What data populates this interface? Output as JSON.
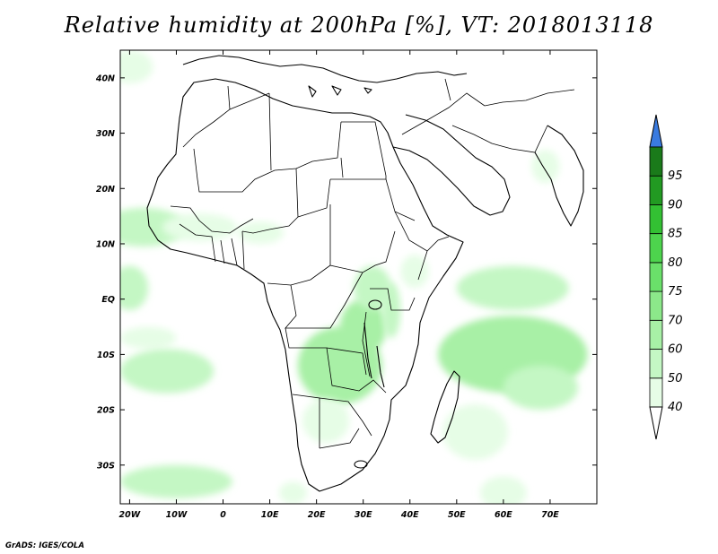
{
  "title": "Relative humidity at 200hPa [%], VT: 2018013118",
  "credit": "GrADS: IGES/COLA",
  "map": {
    "lon_range": [
      -22,
      80
    ],
    "lat_range": [
      -37,
      45
    ],
    "lon_ticks": [
      {
        "lon": -20,
        "label": "20W"
      },
      {
        "lon": -10,
        "label": "10W"
      },
      {
        "lon": 0,
        "label": "0"
      },
      {
        "lon": 10,
        "label": "10E"
      },
      {
        "lon": 20,
        "label": "20E"
      },
      {
        "lon": 30,
        "label": "30E"
      },
      {
        "lon": 40,
        "label": "40E"
      },
      {
        "lon": 50,
        "label": "50E"
      },
      {
        "lon": 60,
        "label": "60E"
      },
      {
        "lon": 70,
        "label": "70E"
      }
    ],
    "lat_ticks": [
      {
        "lat": 40,
        "label": "40N"
      },
      {
        "lat": 30,
        "label": "30N"
      },
      {
        "lat": 20,
        "label": "20N"
      },
      {
        "lat": 10,
        "label": "10N"
      },
      {
        "lat": 0,
        "label": "EQ"
      },
      {
        "lat": -10,
        "label": "10S"
      },
      {
        "lat": -20,
        "label": "20S"
      },
      {
        "lat": -30,
        "label": "30S"
      }
    ],
    "humid_regions": [
      {
        "lon": -20,
        "lat": 42,
        "rlon": 5,
        "rlat": 3,
        "level": 40
      },
      {
        "lon": -17,
        "lat": 13,
        "rlon": 9,
        "rlat": 3.5,
        "level": 50
      },
      {
        "lon": -5,
        "lat": 13,
        "rlon": 8,
        "rlat": 2.5,
        "level": 40
      },
      {
        "lon": 8,
        "lat": 12,
        "rlon": 5,
        "rlat": 2,
        "level": 40
      },
      {
        "lon": -20,
        "lat": 2,
        "rlon": 4,
        "rlat": 4,
        "level": 50
      },
      {
        "lon": -16,
        "lat": -7,
        "rlon": 6,
        "rlat": 2,
        "level": 40
      },
      {
        "lon": -12,
        "lat": -13,
        "rlon": 10,
        "rlat": 4,
        "level": 50
      },
      {
        "lon": 25,
        "lat": -12,
        "rlon": 9,
        "rlat": 7,
        "level": 60
      },
      {
        "lon": 30,
        "lat": -5,
        "rlon": 5,
        "rlat": 5,
        "level": 60
      },
      {
        "lon": 32,
        "lat": 2,
        "rlon": 4,
        "rlat": 4,
        "level": 50
      },
      {
        "lon": 22,
        "lat": -22,
        "rlon": 5,
        "rlat": 4,
        "level": 40
      },
      {
        "lon": 41,
        "lat": 5,
        "rlon": 3,
        "rlat": 3,
        "level": 40
      },
      {
        "lon": 36,
        "lat": -2,
        "rlon": 2,
        "rlat": 5,
        "level": 50
      },
      {
        "lon": 62,
        "lat": 2,
        "rlon": 12,
        "rlat": 4,
        "level": 50
      },
      {
        "lon": 62,
        "lat": -10,
        "rlon": 16,
        "rlat": 7,
        "level": 60
      },
      {
        "lon": 54,
        "lat": -24,
        "rlon": 7,
        "rlat": 5,
        "level": 40
      },
      {
        "lon": 68,
        "lat": -16,
        "rlon": 8,
        "rlat": 4,
        "level": 50
      },
      {
        "lon": 60,
        "lat": -35,
        "rlon": 5,
        "rlat": 3,
        "level": 40
      },
      {
        "lon": -10,
        "lat": -33,
        "rlon": 12,
        "rlat": 3,
        "level": 50
      },
      {
        "lon": 15,
        "lat": -35,
        "rlon": 3,
        "rlat": 2,
        "level": 40
      },
      {
        "lon": 69,
        "lat": 24,
        "rlon": 3,
        "rlat": 3,
        "level": 40
      }
    ],
    "colorbar": {
      "levels": [
        "40",
        "50",
        "60",
        "70",
        "75",
        "80",
        "85",
        "90",
        "95"
      ],
      "colors": [
        "#e6fde6",
        "#c4f7c4",
        "#a8f0a6",
        "#8ce88a",
        "#6ae06a",
        "#4dd44d",
        "#33c033",
        "#229a22",
        "#1a7a1a"
      ],
      "overflow_color": "#3a7be0"
    }
  }
}
